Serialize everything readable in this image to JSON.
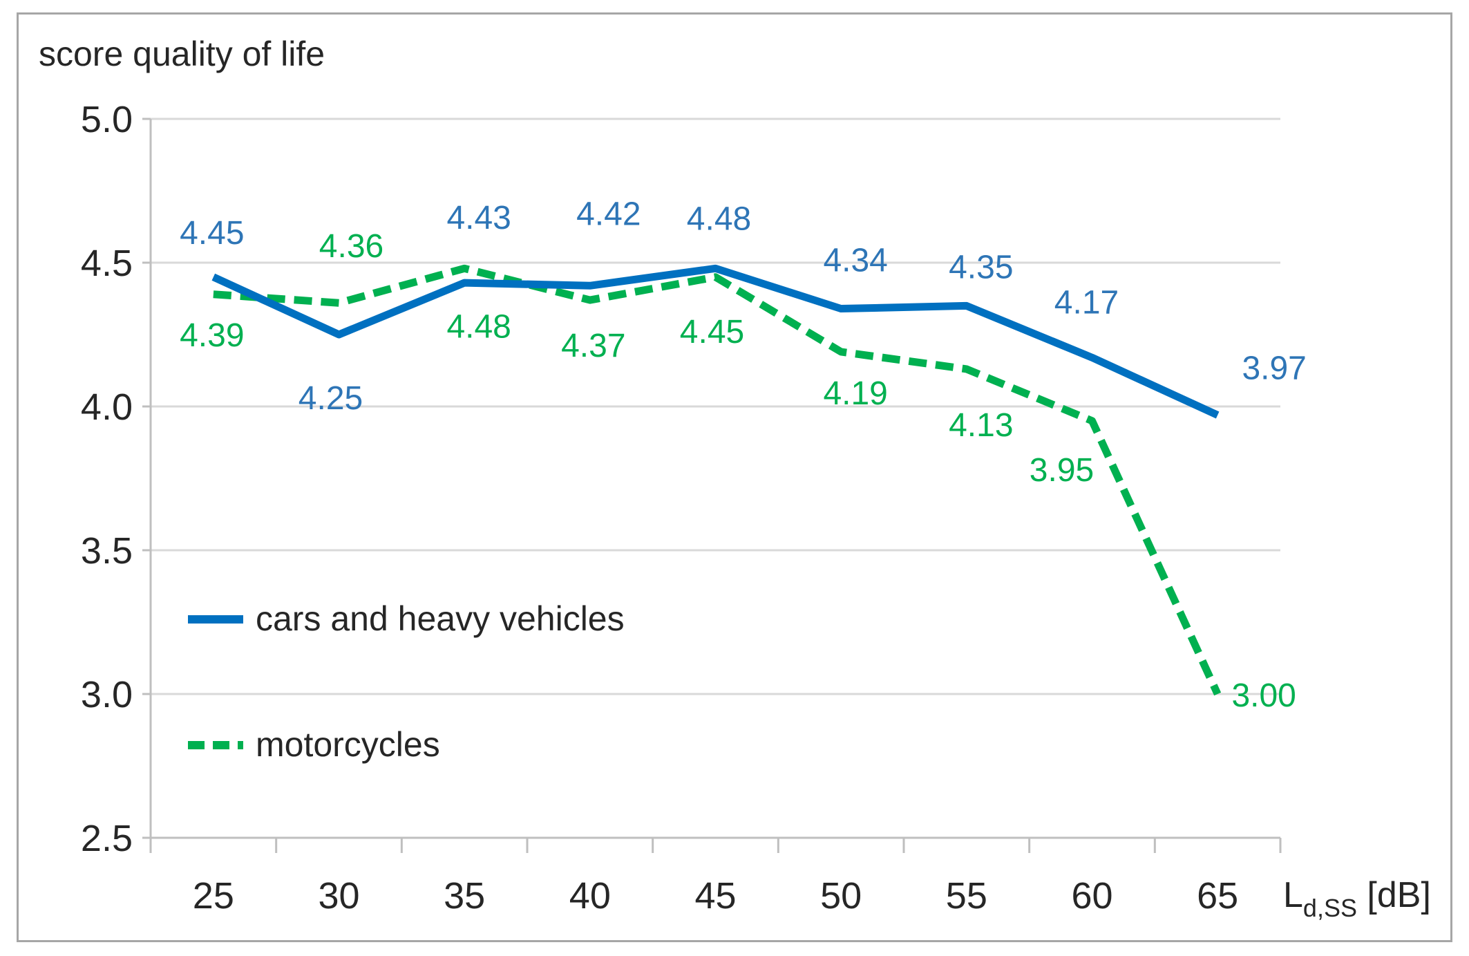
{
  "chart_data": {
    "type": "line",
    "title": "",
    "ylabel": "score quality of life",
    "xlabel": {
      "main": "L",
      "sub": "d,SS",
      "unit": " [dB]"
    },
    "x": [
      25,
      30,
      35,
      40,
      45,
      50,
      55,
      60,
      65
    ],
    "x_tick_labels": [
      "25",
      "30",
      "35",
      "40",
      "45",
      "50",
      "55",
      "60",
      "65"
    ],
    "ylim": [
      2.5,
      5.0
    ],
    "yticks": [
      2.5,
      3.0,
      3.5,
      4.0,
      4.5,
      5.0
    ],
    "y_tick_labels": [
      "2.5",
      "3.0",
      "3.5",
      "4.0",
      "4.5",
      "5.0"
    ],
    "grid": "horizontal",
    "legend_position": "left-middle",
    "series": [
      {
        "name": "cars and heavy vehicles",
        "style": "solid",
        "color": "#0070c0",
        "values": [
          4.45,
          4.25,
          4.43,
          4.42,
          4.48,
          4.34,
          4.35,
          4.17,
          3.97
        ],
        "data_labels": [
          "4.45",
          "4.25",
          "4.43",
          "4.42",
          "4.48",
          "4.34",
          "4.35",
          "4.17",
          "3.97"
        ]
      },
      {
        "name": "motorcycles",
        "style": "dashed",
        "color": "#00b050",
        "values": [
          4.39,
          4.36,
          4.48,
          4.37,
          4.45,
          4.19,
          4.13,
          3.95,
          3.0
        ],
        "data_labels": [
          "4.39",
          "4.36",
          "4.48",
          "4.37",
          "4.45",
          "4.19",
          "4.13",
          "3.95",
          "3.00"
        ]
      }
    ]
  }
}
